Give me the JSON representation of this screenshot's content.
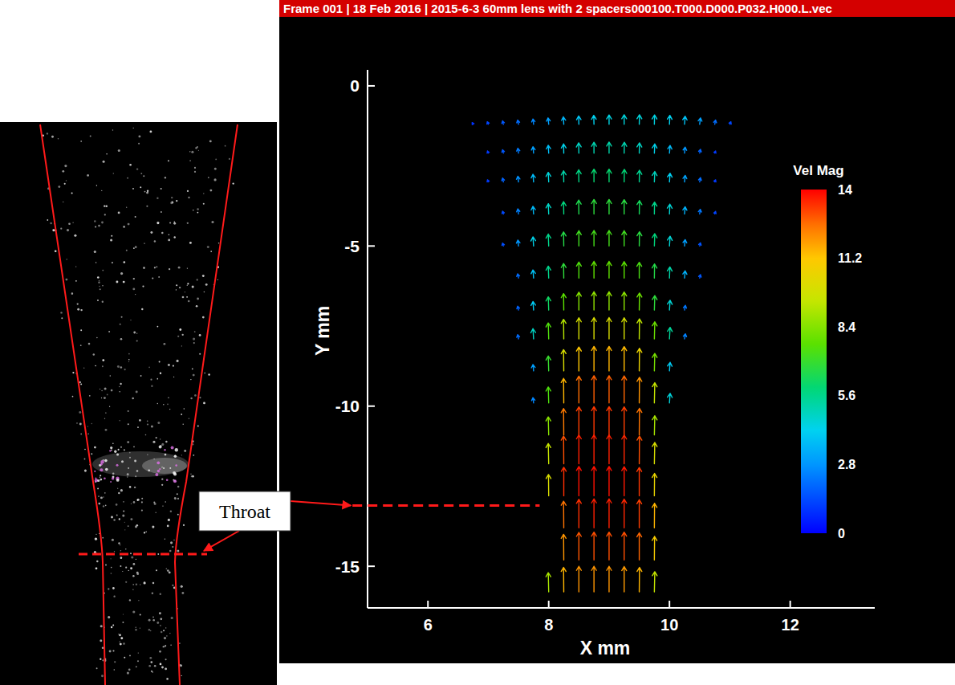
{
  "chart_data": {
    "type": "vector",
    "title": "Frame 001 | 18 Feb 2016 | 2015-6-3 60mm lens with 2 spacers000100.T000.D000.P032.H000.L.vec",
    "x_label": "X mm",
    "y_label": "Y mm",
    "xlim": [
      5,
      13.4
    ],
    "ylim": [
      -16.3,
      0.5
    ],
    "xticks": [
      6,
      8,
      10,
      12
    ],
    "yticks": [
      0,
      -5,
      -10,
      -15
    ],
    "colorbar": {
      "label": "Vel Mag",
      "range": [
        0,
        14
      ],
      "ticks": [
        0,
        2.8,
        5.6,
        8.4,
        11.2,
        14
      ]
    },
    "rows": [
      {
        "y": -1.2,
        "x": [
          6.75,
          7,
          7.25,
          7.5,
          7.75,
          8,
          8.25,
          8.5,
          8.75,
          9,
          9.25,
          9.5,
          9.75,
          10,
          10.25,
          10.5,
          10.75,
          11
        ],
        "v": [
          0.8,
          1.2,
          1.6,
          2.0,
          2.5,
          3.0,
          3.5,
          3.9,
          4.2,
          4.4,
          4.5,
          4.5,
          4.4,
          4.2,
          3.8,
          3.0,
          2.0,
          1.2
        ],
        "u": [
          -0.5,
          -0.5,
          -0.4,
          -0.4,
          -0.3,
          -0.3,
          -0.2,
          -0.1,
          -0.1,
          0,
          0,
          0.1,
          0.1,
          0.2,
          0.3,
          0.4,
          0.4,
          0.5
        ]
      },
      {
        "y": -2.1,
        "x": [
          7,
          7.25,
          7.5,
          7.75,
          8,
          8.25,
          8.5,
          8.75,
          9,
          9.25,
          9.5,
          9.75,
          10,
          10.25,
          10.5,
          10.75
        ],
        "v": [
          1.0,
          1.6,
          2.3,
          3.0,
          3.7,
          4.3,
          4.8,
          5.1,
          5.2,
          5.1,
          4.8,
          4.3,
          3.6,
          2.8,
          1.8,
          1.0
        ],
        "u": [
          -0.4,
          -0.4,
          -0.3,
          -0.3,
          -0.2,
          -0.1,
          -0.1,
          0,
          0,
          0.1,
          0.1,
          0.2,
          0.3,
          0.3,
          0.4,
          0.4
        ]
      },
      {
        "y": -3.0,
        "x": [
          7,
          7.25,
          7.5,
          7.75,
          8,
          8.25,
          8.5,
          8.75,
          9,
          9.25,
          9.5,
          9.75,
          10,
          10.25,
          10.5,
          10.75
        ],
        "v": [
          1.0,
          1.8,
          2.7,
          3.6,
          4.5,
          5.2,
          5.7,
          6.0,
          6.0,
          5.9,
          5.5,
          4.9,
          4.1,
          3.1,
          2.0,
          1.0
        ],
        "u": [
          -0.4,
          -0.4,
          -0.3,
          -0.3,
          -0.2,
          -0.1,
          -0.1,
          0,
          0,
          0.1,
          0.1,
          0.2,
          0.3,
          0.3,
          0.4,
          0.4
        ]
      },
      {
        "y": -4.0,
        "x": [
          7.25,
          7.5,
          7.75,
          8,
          8.25,
          8.5,
          8.75,
          9,
          9.25,
          9.5,
          9.75,
          10,
          10.25,
          10.5,
          10.75
        ],
        "v": [
          1.3,
          2.4,
          3.6,
          4.8,
          5.8,
          6.5,
          6.8,
          6.8,
          6.7,
          6.3,
          5.6,
          4.6,
          3.4,
          2.2,
          1.2
        ],
        "u": [
          -0.4,
          -0.3,
          -0.3,
          -0.2,
          -0.1,
          -0.1,
          0,
          0,
          0,
          0.1,
          0.1,
          0.2,
          0.3,
          0.3,
          0.4
        ]
      },
      {
        "y": -5.0,
        "x": [
          7.25,
          7.5,
          7.75,
          8,
          8.25,
          8.5,
          8.75,
          9,
          9.25,
          9.5,
          9.75,
          10,
          10.25,
          10.5
        ],
        "v": [
          1.4,
          2.8,
          4.3,
          5.6,
          6.6,
          7.2,
          7.3,
          7.3,
          7.2,
          6.7,
          5.8,
          4.6,
          3.0,
          1.5
        ],
        "u": [
          -0.4,
          -0.3,
          -0.3,
          -0.2,
          -0.1,
          0,
          0,
          0,
          0,
          0.1,
          0.2,
          0.3,
          0.3,
          0.4
        ]
      },
      {
        "y": -6.0,
        "x": [
          7.5,
          7.75,
          8,
          8.25,
          8.5,
          8.75,
          9,
          9.25,
          9.5,
          9.75,
          10,
          10.25,
          10.5
        ],
        "v": [
          2.0,
          3.8,
          5.6,
          6.8,
          7.5,
          7.8,
          7.8,
          7.7,
          7.4,
          6.6,
          5.2,
          3.4,
          1.6
        ],
        "u": [
          -0.4,
          -0.3,
          -0.2,
          -0.1,
          0,
          0,
          0,
          0,
          0,
          0.1,
          0.2,
          0.3,
          0.4
        ]
      },
      {
        "y": -7.0,
        "x": [
          7.5,
          7.75,
          8,
          8.25,
          8.5,
          8.75,
          9,
          9.25,
          9.5,
          9.75,
          10,
          10.25
        ],
        "v": [
          1.8,
          4.0,
          6.2,
          7.7,
          8.4,
          8.6,
          8.6,
          8.5,
          8.0,
          6.8,
          4.6,
          2.2
        ],
        "u": [
          -0.4,
          -0.3,
          -0.2,
          -0.1,
          0,
          0,
          0,
          0,
          0.1,
          0.2,
          0.3,
          0.4
        ]
      },
      {
        "y": -7.9,
        "x": [
          7.5,
          7.75,
          8,
          8.25,
          8.5,
          8.75,
          9,
          9.25,
          9.5,
          9.75,
          10,
          10.25
        ],
        "v": [
          2.0,
          4.8,
          7.5,
          9.2,
          9.9,
          10.0,
          10.0,
          9.9,
          9.4,
          8.0,
          5.4,
          2.4
        ],
        "u": [
          -0.4,
          -0.3,
          -0.2,
          -0.1,
          0,
          0,
          0,
          0,
          0.1,
          0.2,
          0.3,
          0.4
        ]
      },
      {
        "y": -8.9,
        "x": [
          7.75,
          8,
          8.25,
          8.5,
          8.75,
          9,
          9.25,
          9.5,
          9.75,
          10
        ],
        "v": [
          3.0,
          7.0,
          10.0,
          11.2,
          11.5,
          11.5,
          11.4,
          10.6,
          8.2,
          4.0
        ],
        "u": [
          -0.3,
          -0.2,
          -0.1,
          0,
          0,
          0,
          0,
          0.1,
          0.2,
          0.3
        ]
      },
      {
        "y": -9.9,
        "x": [
          7.75,
          8,
          8.25,
          8.5,
          8.75,
          9,
          9.25,
          9.5,
          9.75,
          10
        ],
        "v": [
          2.5,
          7.5,
          11.5,
          12.6,
          12.8,
          12.8,
          12.7,
          12.0,
          9.5,
          4.5
        ],
        "u": [
          -0.3,
          -0.2,
          -0.1,
          0,
          0,
          0,
          0,
          0.1,
          0.2,
          0.3
        ]
      },
      {
        "y": -10.9,
        "x": [
          8,
          8.25,
          8.5,
          8.75,
          9,
          9.25,
          9.5,
          9.75
        ],
        "v": [
          8.5,
          12.4,
          13.2,
          13.3,
          13.3,
          13.2,
          12.5,
          9.0
        ],
        "u": [
          -0.2,
          -0.1,
          0,
          0,
          0,
          0,
          0.1,
          0.2
        ]
      },
      {
        "y": -11.8,
        "x": [
          8,
          8.25,
          8.5,
          8.75,
          9,
          9.25,
          9.5,
          9.75
        ],
        "v": [
          9.5,
          13.0,
          13.6,
          13.6,
          13.6,
          13.5,
          13.0,
          10.0
        ],
        "u": [
          -0.2,
          -0.1,
          0,
          0,
          0,
          0,
          0.1,
          0.2
        ]
      },
      {
        "y": -12.8,
        "x": [
          8,
          8.25,
          8.5,
          8.75,
          9,
          9.25,
          9.5,
          9.75
        ],
        "v": [
          10.0,
          13.4,
          13.8,
          13.8,
          13.8,
          13.7,
          13.3,
          10.5
        ],
        "u": [
          -0.1,
          0,
          0,
          0,
          0,
          0,
          0,
          0.1
        ]
      },
      {
        "y": -13.8,
        "x": [
          8.25,
          8.5,
          8.75,
          9,
          9.25,
          9.5,
          9.75
        ],
        "v": [
          12.5,
          13.4,
          13.6,
          13.6,
          13.5,
          13.2,
          11.5
        ],
        "u": [
          -0.1,
          0,
          0,
          0,
          0,
          0,
          0.1
        ]
      },
      {
        "y": -14.8,
        "x": [
          8.25,
          8.5,
          8.75,
          9,
          9.25,
          9.5,
          9.75
        ],
        "v": [
          12.0,
          12.9,
          13.0,
          13.0,
          13.0,
          12.7,
          11.0
        ],
        "u": [
          -0.1,
          0,
          0,
          0,
          0,
          0,
          0.1
        ]
      },
      {
        "y": -15.8,
        "x": [
          8,
          8.25,
          8.5,
          8.75,
          9,
          9.25,
          9.5,
          9.75
        ],
        "v": [
          9.0,
          11.5,
          12.0,
          12.0,
          12.0,
          11.9,
          11.5,
          9.5
        ],
        "u": [
          -0.2,
          -0.1,
          0,
          0,
          0,
          0,
          0.1,
          0.2
        ]
      }
    ],
    "annotations": [
      {
        "text": "Throat",
        "y": -13.1,
        "x_range": [
          4.75,
          7.85
        ]
      }
    ]
  }
}
